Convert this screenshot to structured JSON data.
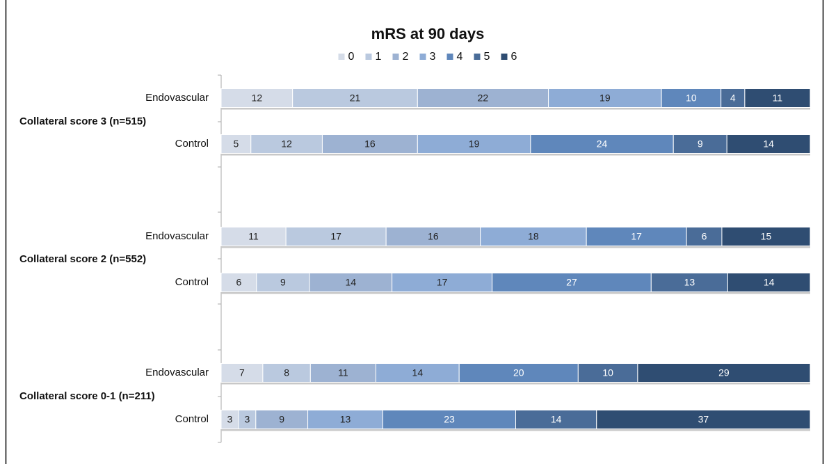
{
  "chart_data": {
    "type": "stacked-bar-horizontal",
    "title": "mRS at 90 days",
    "categories": [
      "Endovascular",
      "Control",
      "Endovascular",
      "Control",
      "Endovascular",
      "Control"
    ],
    "groups": [
      "Collateral score 3 (n=515)",
      "Collateral score 2 (n=552)",
      "Collateral score 0-1 (n=211)"
    ],
    "series": [
      {
        "name": "0",
        "color": "#d5dce8",
        "values": [
          12,
          5,
          11,
          6,
          7,
          3
        ]
      },
      {
        "name": "1",
        "color": "#bac9df",
        "values": [
          21,
          12,
          17,
          9,
          8,
          3
        ]
      },
      {
        "name": "2",
        "color": "#9db2d2",
        "values": [
          22,
          16,
          16,
          14,
          11,
          9
        ]
      },
      {
        "name": "3",
        "color": "#8eacd6",
        "values": [
          19,
          19,
          18,
          17,
          14,
          13
        ]
      },
      {
        "name": "4",
        "color": "#5f87bb",
        "values": [
          10,
          24,
          17,
          27,
          20,
          23
        ]
      },
      {
        "name": "5",
        "color": "#4a6c98",
        "values": [
          4,
          9,
          6,
          13,
          10,
          14
        ]
      },
      {
        "name": "6",
        "color": "#2f4d72",
        "values": [
          11,
          14,
          15,
          14,
          29,
          37
        ]
      }
    ],
    "legend": "top"
  }
}
